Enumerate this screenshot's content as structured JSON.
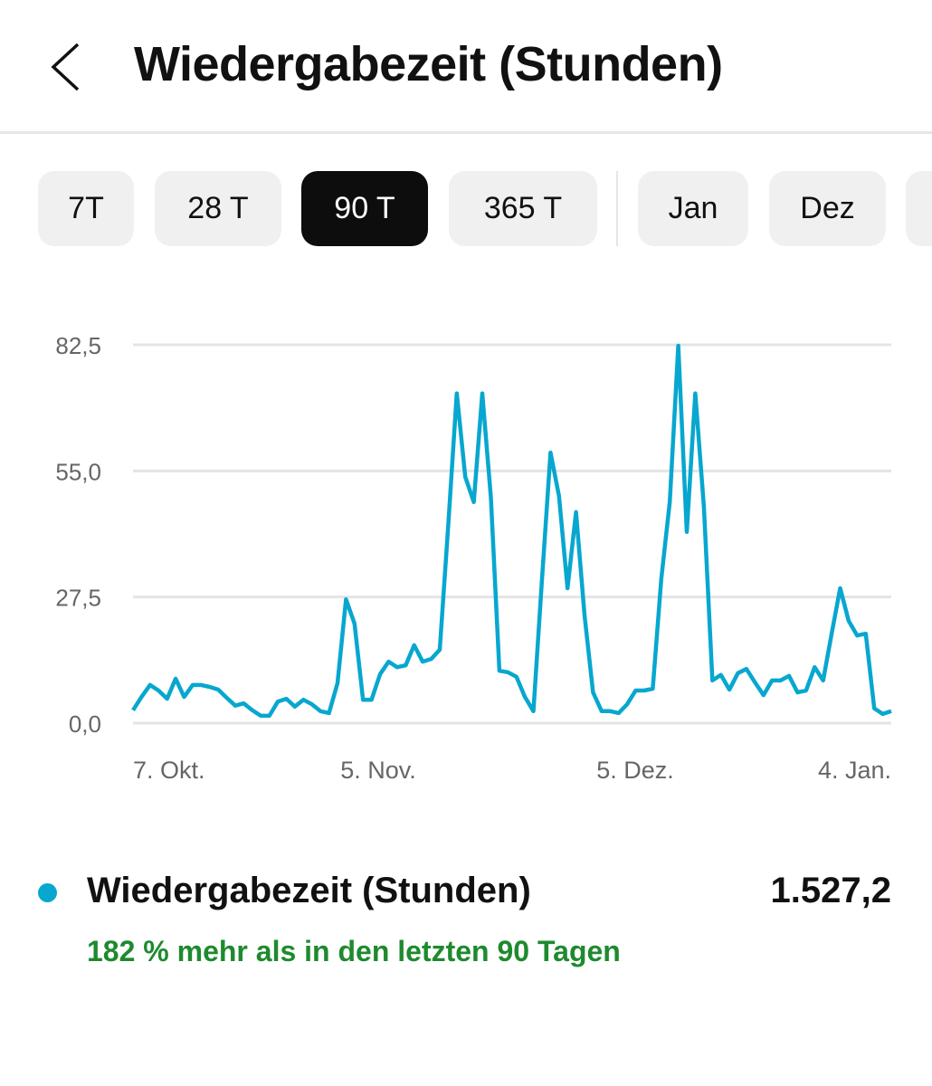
{
  "header": {
    "title": "Wiedergabezeit (Stunden)",
    "back_icon": "chevron-left-icon"
  },
  "filters": [
    {
      "label": "7T",
      "selected": false
    },
    {
      "label": "28 T",
      "selected": false
    },
    {
      "label": "90 T",
      "selected": true
    },
    {
      "label": "365 T",
      "selected": false
    },
    {
      "label": "Jan",
      "selected": false
    },
    {
      "label": "Dez",
      "selected": false
    }
  ],
  "colors": {
    "series": "#07a7cf",
    "positive": "#1e8a2e",
    "grid": "#e4e4e4"
  },
  "chart_data": {
    "type": "line",
    "title": "Wiedergabezeit (Stunden)",
    "xlabel": "",
    "ylabel": "",
    "ylim": [
      0,
      82.5
    ],
    "yticks": [
      "0,0",
      "27,5",
      "55,0",
      "82,5"
    ],
    "ytick_values": [
      0,
      27.5,
      55,
      82.5
    ],
    "xticks": [
      "7. Okt.",
      "5. Nov.",
      "5. Dez.",
      "4. Jan."
    ],
    "grid": true,
    "series": [
      {
        "name": "Wiedergabezeit (Stunden)",
        "values": [
          2.8,
          5.7,
          8.3,
          7.1,
          5.3,
          9.7,
          5.7,
          8.3,
          8.3,
          7.9,
          7.3,
          5.5,
          3.8,
          4.3,
          2.8,
          1.6,
          1.6,
          4.7,
          5.3,
          3.6,
          5.1,
          4.1,
          2.6,
          2.2,
          8.7,
          27.0,
          21.7,
          5.1,
          5.1,
          10.7,
          13.4,
          12.2,
          12.6,
          17.0,
          13.4,
          14.0,
          16.0,
          43.2,
          71.9,
          53.7,
          48.2,
          71.9,
          49.2,
          11.4,
          11.1,
          10.1,
          5.7,
          2.6,
          31.4,
          59.0,
          49.5,
          29.4,
          46.0,
          23.5,
          6.7,
          2.6,
          2.6,
          2.2,
          4.1,
          7.1,
          7.1,
          7.5,
          31.4,
          48.2,
          82.3,
          41.7,
          71.9,
          47.2,
          9.3,
          10.5,
          7.3,
          10.9,
          11.8,
          8.9,
          6.1,
          9.3,
          9.3,
          10.3,
          6.7,
          7.1,
          12.2,
          9.3,
          19.5,
          29.4,
          22.3,
          19.1,
          19.5,
          3.2,
          2.0,
          2.6
        ]
      }
    ]
  },
  "summary": {
    "label": "Wiedergabezeit (Stunden)",
    "value": "1.527,2",
    "change": "182 % mehr als in den letzten 90 Tagen"
  }
}
